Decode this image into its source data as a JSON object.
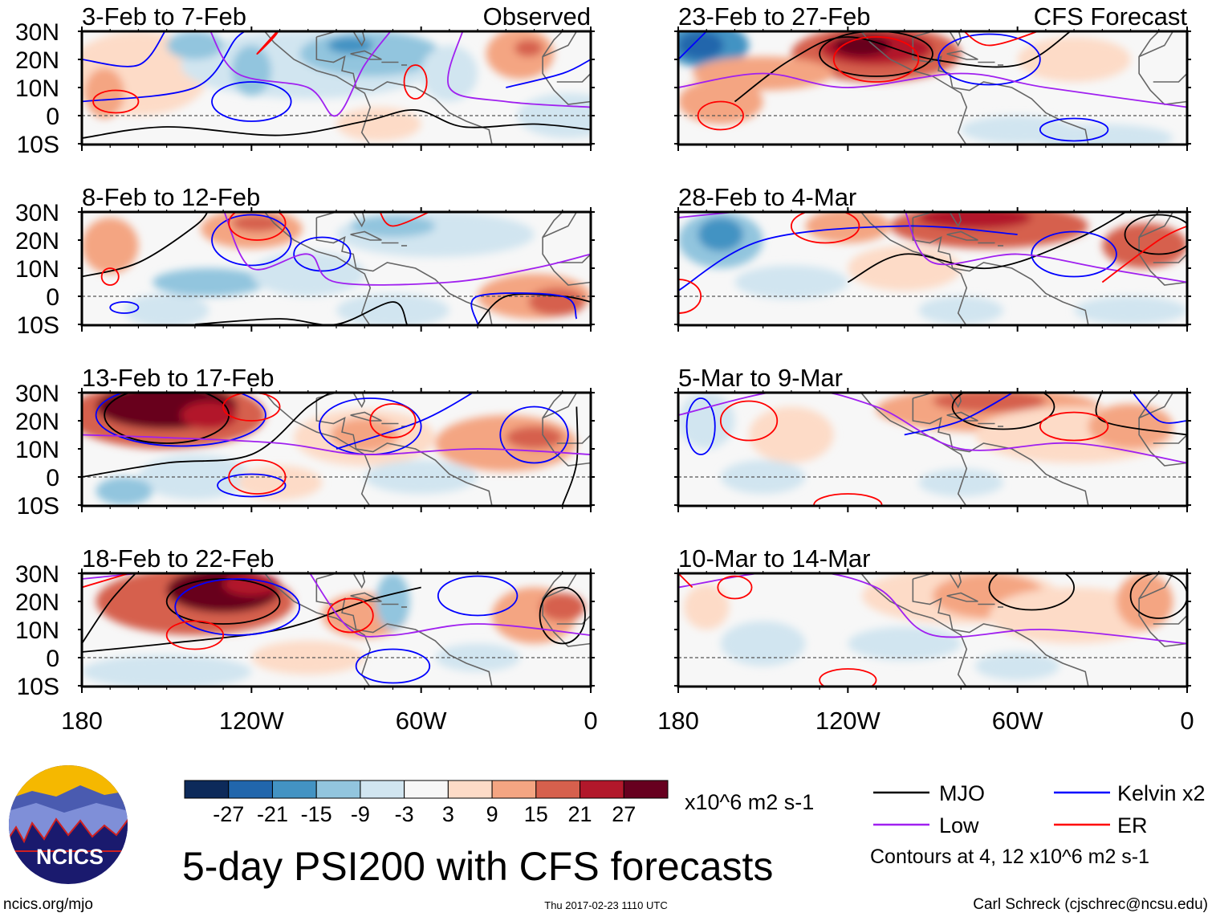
{
  "panels": [
    {
      "title": "3-Feb to 7-Feb",
      "tag": "Observed"
    },
    {
      "title": "8-Feb to 12-Feb",
      "tag": ""
    },
    {
      "title": "13-Feb to 17-Feb",
      "tag": ""
    },
    {
      "title": "18-Feb to 22-Feb",
      "tag": ""
    },
    {
      "title": "23-Feb to 27-Feb",
      "tag": "CFS Forecast"
    },
    {
      "title": "28-Feb to 4-Mar",
      "tag": ""
    },
    {
      "title": "5-Mar to 9-Mar",
      "tag": ""
    },
    {
      "title": "10-Mar to 14-Mar",
      "tag": ""
    }
  ],
  "lat_labels": [
    "30N",
    "20N",
    "10N",
    "0",
    "10S"
  ],
  "lon_labels": [
    "180",
    "120W",
    "60W",
    "0"
  ],
  "colorbar": {
    "labels": [
      "-27",
      "-21",
      "-15",
      "-9",
      "-3",
      "3",
      "9",
      "15",
      "21",
      "27"
    ],
    "colors": [
      "#0d2a5a",
      "#2166ac",
      "#4393c3",
      "#92c5de",
      "#d1e5f0",
      "#f7f7f7",
      "#fddbc7",
      "#f4a582",
      "#d6604d",
      "#b2182b",
      "#67001f"
    ],
    "units": "x10^6 m2 s-1"
  },
  "legend": {
    "items": [
      {
        "label": "MJO",
        "color": "#000000"
      },
      {
        "label": "Kelvin x2",
        "color": "#0000ff"
      },
      {
        "label": "Low",
        "color": "#a020f0"
      },
      {
        "label": "ER",
        "color": "#ff0000"
      }
    ],
    "contours_note": "Contours at 4, 12 x10^6 m2 s-1"
  },
  "title": "5-day PSI200 with CFS forecasts",
  "logo_text": "NCICS",
  "footer": {
    "url": "ncics.org/mjo",
    "timestamp": "Thu 2017-02-23 1110 UTC",
    "author": "Carl Schreck (cjschrec@ncsu.edu)"
  }
}
